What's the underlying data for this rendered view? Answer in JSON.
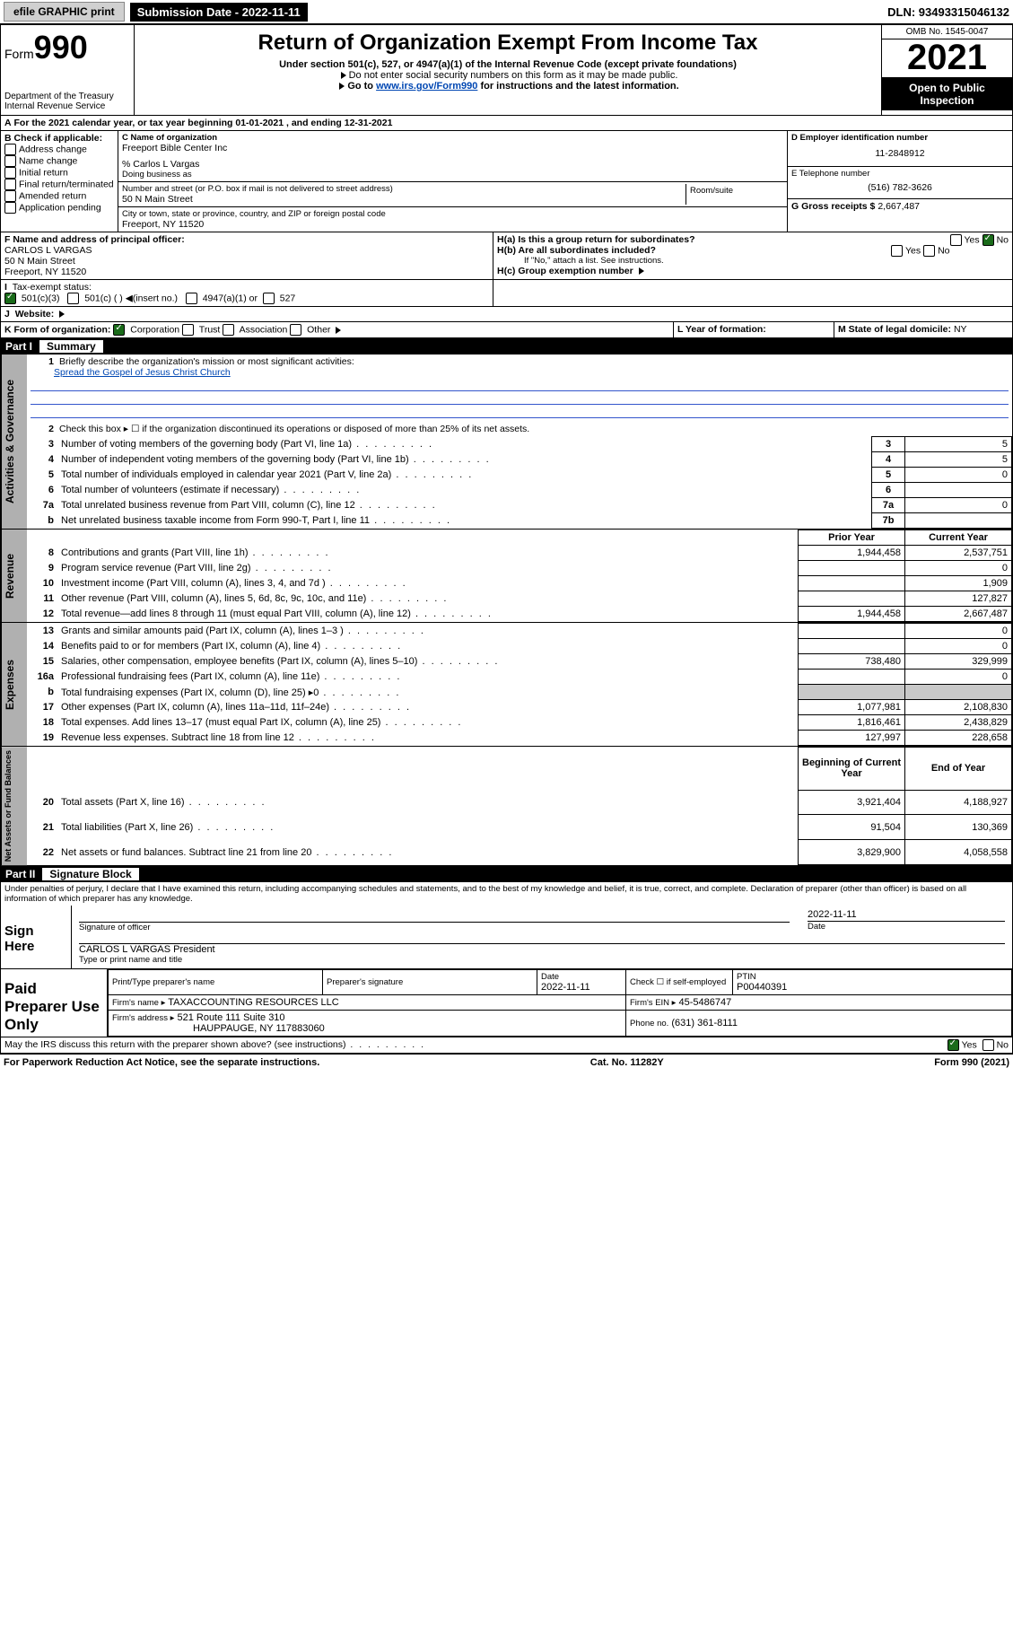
{
  "topbar": {
    "efile": "efile GRAPHIC print",
    "submission_label": "Submission Date - 2022-11-11",
    "dln": "DLN: 93493315046132"
  },
  "header": {
    "form_prefix": "Form",
    "form_no": "990",
    "dept": "Department of the Treasury",
    "irs": "Internal Revenue Service",
    "title": "Return of Organization Exempt From Income Tax",
    "subtitle": "Under section 501(c), 527, or 4947(a)(1) of the Internal Revenue Code (except private foundations)",
    "instr1": "Do not enter social security numbers on this form as it may be made public.",
    "instr2_pre": "Go to ",
    "instr2_link": "www.irs.gov/Form990",
    "instr2_post": " for instructions and the latest information.",
    "omb": "OMB No. 1545-0047",
    "year": "2021",
    "open": "Open to Public Inspection"
  },
  "sectionA": {
    "a_text": "For the 2021 calendar year, or tax year beginning 01-01-2021   , and ending 12-31-2021",
    "b_label": "B Check if applicable:",
    "b_opts": [
      "Address change",
      "Name change",
      "Initial return",
      "Final return/terminated",
      "Amended return",
      "Application pending"
    ],
    "c_label": "C Name of organization",
    "org_name": "Freeport Bible Center Inc",
    "care_of": "% Carlos L Vargas",
    "dba_label": "Doing business as",
    "street_label": "Number and street (or P.O. box if mail is not delivered to street address)",
    "room_label": "Room/suite",
    "street": "50 N Main Street",
    "city_label": "City or town, state or province, country, and ZIP or foreign postal code",
    "city": "Freeport, NY  11520",
    "d_label": "D Employer identification number",
    "ein": "11-2848912",
    "e_label": "E Telephone number",
    "phone": "(516) 782-3626",
    "g_label": "G Gross receipts $",
    "gross": "2,667,487",
    "f_label": "F Name and address of principal officer:",
    "officer_name": "CARLOS L VARGAS",
    "officer_addr1": "50 N Main Street",
    "officer_addr2": "Freeport, NY  11520",
    "ha_label": "H(a)  Is this a group return for subordinates?",
    "hb_label": "H(b)  Are all subordinates included?",
    "hb_note": "If \"No,\" attach a list. See instructions.",
    "hc_label": "H(c)  Group exemption number",
    "yes": "Yes",
    "no": "No",
    "i_label": "Tax-exempt status:",
    "i_501c3": "501(c)(3)",
    "i_501c": "501(c) (  )",
    "i_insert": "(insert no.)",
    "i_4947": "4947(a)(1) or",
    "i_527": "527",
    "j_label": "Website:",
    "k_label": "K Form of organization:",
    "k_corp": "Corporation",
    "k_trust": "Trust",
    "k_assoc": "Association",
    "k_other": "Other",
    "l_label": "L Year of formation:",
    "m_label": "M State of legal domicile:",
    "m_val": "NY"
  },
  "part1": {
    "label": "Part I",
    "title": "Summary",
    "line1_label": "Briefly describe the organization's mission or most significant activities:",
    "line1_text": "Spread the Gospel of Jesus Christ Church",
    "line2": "Check this box ▸ ☐  if the organization discontinued its operations or disposed of more than 25% of its net assets.",
    "rows_gov": [
      {
        "n": "3",
        "t": "Number of voting members of the governing body (Part VI, line 1a)",
        "box": "3",
        "v": "5"
      },
      {
        "n": "4",
        "t": "Number of independent voting members of the governing body (Part VI, line 1b)",
        "box": "4",
        "v": "5"
      },
      {
        "n": "5",
        "t": "Total number of individuals employed in calendar year 2021 (Part V, line 2a)",
        "box": "5",
        "v": "0"
      },
      {
        "n": "6",
        "t": "Total number of volunteers (estimate if necessary)",
        "box": "6",
        "v": ""
      },
      {
        "n": "7a",
        "t": "Total unrelated business revenue from Part VIII, column (C), line 12",
        "box": "7a",
        "v": "0"
      },
      {
        "n": "b",
        "t": "Net unrelated business taxable income from Form 990-T, Part I, line 11",
        "box": "7b",
        "v": ""
      }
    ],
    "prior_hdr": "Prior Year",
    "current_hdr": "Current Year",
    "rows_rev": [
      {
        "n": "8",
        "t": "Contributions and grants (Part VIII, line 1h)",
        "p": "1,944,458",
        "c": "2,537,751"
      },
      {
        "n": "9",
        "t": "Program service revenue (Part VIII, line 2g)",
        "p": "",
        "c": "0"
      },
      {
        "n": "10",
        "t": "Investment income (Part VIII, column (A), lines 3, 4, and 7d )",
        "p": "",
        "c": "1,909"
      },
      {
        "n": "11",
        "t": "Other revenue (Part VIII, column (A), lines 5, 6d, 8c, 9c, 10c, and 11e)",
        "p": "",
        "c": "127,827"
      },
      {
        "n": "12",
        "t": "Total revenue—add lines 8 through 11 (must equal Part VIII, column (A), line 12)",
        "p": "1,944,458",
        "c": "2,667,487"
      }
    ],
    "rows_exp": [
      {
        "n": "13",
        "t": "Grants and similar amounts paid (Part IX, column (A), lines 1–3 )",
        "p": "",
        "c": "0"
      },
      {
        "n": "14",
        "t": "Benefits paid to or for members (Part IX, column (A), line 4)",
        "p": "",
        "c": "0"
      },
      {
        "n": "15",
        "t": "Salaries, other compensation, employee benefits (Part IX, column (A), lines 5–10)",
        "p": "738,480",
        "c": "329,999"
      },
      {
        "n": "16a",
        "t": "Professional fundraising fees (Part IX, column (A), line 11e)",
        "p": "",
        "c": "0"
      },
      {
        "n": "b",
        "t": "Total fundraising expenses (Part IX, column (D), line 25) ▸0",
        "p": "SHADE",
        "c": "SHADE"
      },
      {
        "n": "17",
        "t": "Other expenses (Part IX, column (A), lines 11a–11d, 11f–24e)",
        "p": "1,077,981",
        "c": "2,108,830"
      },
      {
        "n": "18",
        "t": "Total expenses. Add lines 13–17 (must equal Part IX, column (A), line 25)",
        "p": "1,816,461",
        "c": "2,438,829"
      },
      {
        "n": "19",
        "t": "Revenue less expenses. Subtract line 18 from line 12",
        "p": "127,997",
        "c": "228,658"
      }
    ],
    "begin_hdr": "Beginning of Current Year",
    "end_hdr": "End of Year",
    "rows_net": [
      {
        "n": "20",
        "t": "Total assets (Part X, line 16)",
        "p": "3,921,404",
        "c": "4,188,927"
      },
      {
        "n": "21",
        "t": "Total liabilities (Part X, line 26)",
        "p": "91,504",
        "c": "130,369"
      },
      {
        "n": "22",
        "t": "Net assets or fund balances. Subtract line 21 from line 20",
        "p": "3,829,900",
        "c": "4,058,558"
      }
    ],
    "vtab_gov": "Activities & Governance",
    "vtab_rev": "Revenue",
    "vtab_exp": "Expenses",
    "vtab_net": "Net Assets or Fund Balances"
  },
  "part2": {
    "label": "Part II",
    "title": "Signature Block",
    "perjury": "Under penalties of perjury, I declare that I have examined this return, including accompanying schedules and statements, and to the best of my knowledge and belief, it is true, correct, and complete. Declaration of preparer (other than officer) is based on all information of which preparer has any knowledge.",
    "sign_here": "Sign Here",
    "sig_officer": "Signature of officer",
    "sig_date": "2022-11-11",
    "date_label": "Date",
    "officer": "CARLOS L VARGAS President",
    "type_name": "Type or print name and title",
    "paid": "Paid Preparer Use Only",
    "prep_name_label": "Print/Type preparer's name",
    "prep_sig_label": "Preparer's signature",
    "prep_date_label": "Date",
    "prep_date": "2022-11-11",
    "check_if": "Check ☐ if self-employed",
    "ptin_label": "PTIN",
    "ptin": "P00440391",
    "firm_name_label": "Firm's name   ▸",
    "firm_name": "TAXACCOUNTING RESOURCES LLC",
    "firm_ein_label": "Firm's EIN ▸",
    "firm_ein": "45-5486747",
    "firm_addr_label": "Firm's address ▸",
    "firm_addr1": "521 Route 111 Suite 310",
    "firm_addr2": "HAUPPAUGE, NY  117883060",
    "phone_label": "Phone no.",
    "phone": "(631) 361-8111",
    "discuss": "May the IRS discuss this return with the preparer shown above? (see instructions)"
  },
  "footer": {
    "pra": "For Paperwork Reduction Act Notice, see the separate instructions.",
    "cat": "Cat. No. 11282Y",
    "form": "Form 990 (2021)"
  },
  "colors": {
    "link": "#0047b3",
    "check_green": "#1a6b1a",
    "shade": "#c8c8c8",
    "vtab": "#b0b0b0"
  }
}
